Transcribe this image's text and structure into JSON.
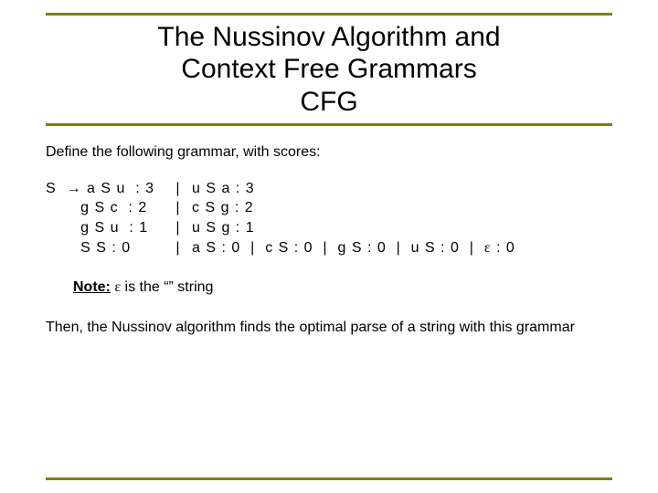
{
  "colors": {
    "rule": "#808000",
    "text": "#000000",
    "background": "#ffffff"
  },
  "title": {
    "line1": "The Nussinov Algorithm and",
    "line2": "Context Free Grammars",
    "line3": "CFG",
    "fontsize": 30
  },
  "intro": "Define the following grammar, with scores:",
  "grammar": {
    "arrow": "→",
    "pipe": "|",
    "epsilon": "ε",
    "rows": [
      {
        "left": "S  → a S u  : 3",
        "right": "u S a  : 3"
      },
      {
        "left": "       g S c  : 2",
        "right": "c S g  : 2"
      },
      {
        "left": "       g S u  : 1",
        "right": "u S g  : 1"
      },
      {
        "left": "       S S : 0",
        "right": "a S : 0  |  c S : 0  |  g S : 0  |  u S : 0  |  ε : 0"
      }
    ]
  },
  "note": {
    "label": "Note:",
    "text": " ε is the \"\" string"
  },
  "conclusion": "Then, the Nussinov algorithm finds the optimal parse of a string with this grammar"
}
